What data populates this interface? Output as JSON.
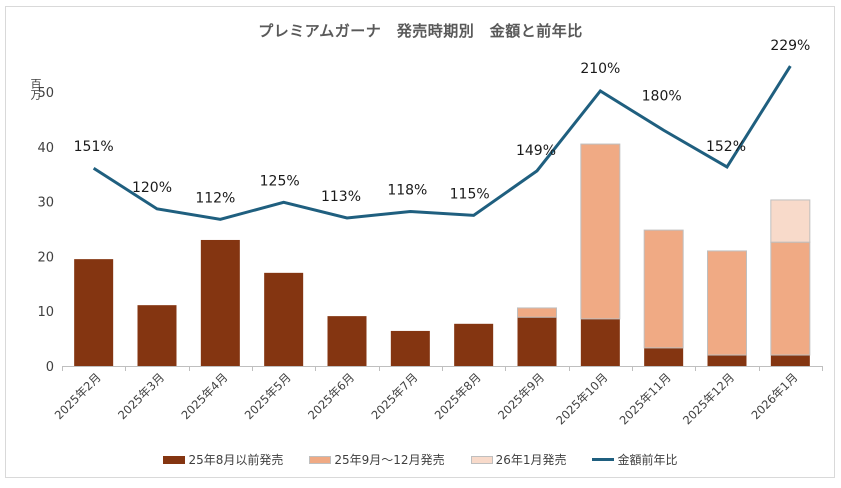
{
  "chart_data": {
    "type": "bar",
    "subtype": "stacked-bar-with-line",
    "title": "プレミアムガーナ　発売時期別　金額と前年比",
    "ylabel": "百万",
    "xlabel": "",
    "ylim": [
      0,
      55
    ],
    "yticks": [
      "0",
      "10",
      "20",
      "30",
      "40",
      "50"
    ],
    "ytick_values": [
      0,
      10,
      20,
      30,
      40,
      50
    ],
    "categories": [
      "2025年2月",
      "2025年3月",
      "2025年4月",
      "2025年5月",
      "2025年6月",
      "2025年7月",
      "2025年8月",
      "2025年9月",
      "2025年10月",
      "2025年11月",
      "2025年12月",
      "2026年1月"
    ],
    "series": [
      {
        "name": "25年8月以前発売",
        "kind": "bar",
        "color": "#843511",
        "values": [
          19.5,
          11.1,
          23.0,
          17.0,
          9.1,
          6.4,
          7.7,
          8.9,
          8.6,
          3.3,
          2.0,
          2.0
        ]
      },
      {
        "name": "25年9月～12月発売",
        "kind": "bar",
        "color": "#F0AA84",
        "values": [
          0,
          0,
          0,
          0,
          0,
          0,
          0,
          1.7,
          31.9,
          21.5,
          19.0,
          20.6
        ]
      },
      {
        "name": "26年1月発売",
        "kind": "bar",
        "color": "#F8DACA",
        "values": [
          0,
          0,
          0,
          0,
          0,
          0,
          0,
          0,
          0,
          0,
          0,
          7.7
        ]
      },
      {
        "name": "金額前年比",
        "kind": "line",
        "color": "#1F5F7F",
        "values": [
          151,
          120,
          112,
          125,
          113,
          118,
          115,
          149,
          210,
          180,
          152,
          229
        ],
        "labels": [
          "151%",
          "120%",
          "112%",
          "125%",
          "113%",
          "118%",
          "115%",
          "149%",
          "210%",
          "180%",
          "152%",
          "229%"
        ]
      }
    ],
    "legend": "bottom",
    "grid": false
  }
}
